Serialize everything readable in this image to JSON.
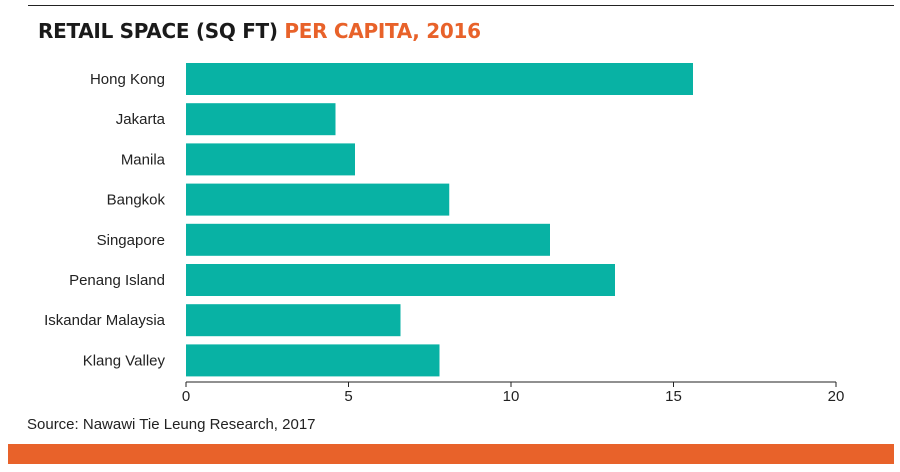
{
  "title": {
    "part1": "RETAIL SPACE (SQ FT)",
    "part2": "PER CAPITA, 2016",
    "part2_color": "#e8622a"
  },
  "source": "Source: Nawawi Tie Leung Research, 2017",
  "colors": {
    "bar": "#08b2a4",
    "accent_band": "#e8622a"
  },
  "chart_data": {
    "type": "bar",
    "orientation": "horizontal",
    "title": "RETAIL SPACE (SQ FT) PER CAPITA, 2016",
    "xlabel": "",
    "ylabel": "",
    "categories": [
      "Hong Kong",
      "Jakarta",
      "Manila",
      "Bangkok",
      "Singapore",
      "Penang Island",
      "Iskandar Malaysia",
      "Klang Valley"
    ],
    "values": [
      15.6,
      4.6,
      5.2,
      8.1,
      11.2,
      13.2,
      6.6,
      7.8
    ],
    "xlim": [
      0,
      20
    ],
    "xticks": [
      0,
      5,
      10,
      15,
      20
    ],
    "grid": false,
    "legend": "none"
  }
}
